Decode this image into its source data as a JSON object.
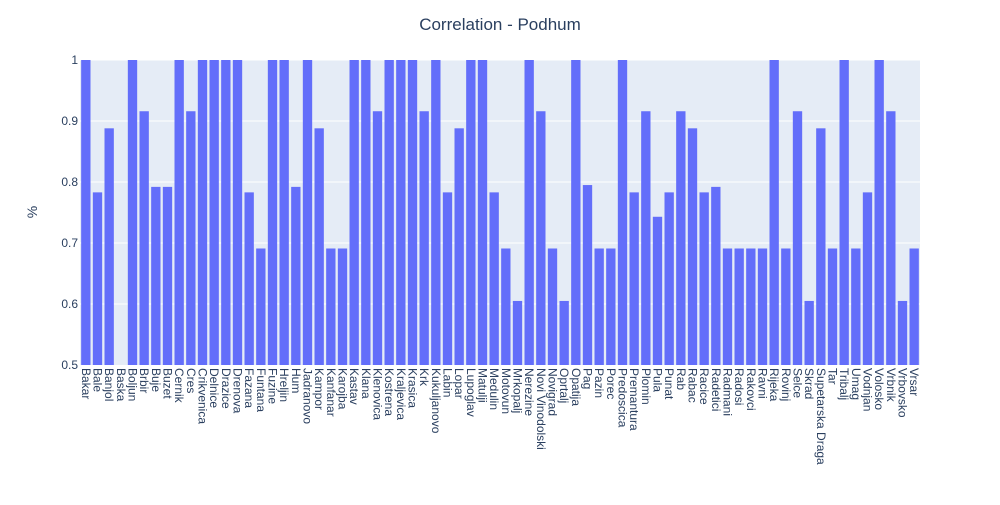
{
  "chart_data": {
    "type": "bar",
    "title": "Correlation - Podhum",
    "xlabel": "",
    "ylabel": "%",
    "ylim": [
      0.5,
      1.0
    ],
    "yticks": [
      "0.5",
      "0.6",
      "0.7",
      "0.8",
      "0.9",
      "1"
    ],
    "grid": true,
    "legend": "none",
    "bar_color": "#636efa",
    "plot_bg": "#e5ecf6",
    "grid_color": "#ffffff",
    "text_color": "#2a3f5f",
    "categories": [
      "Bakar",
      "Bale",
      "Banjol",
      "Baska",
      "Boljun",
      "Brbir",
      "Buje",
      "Buzet",
      "Cernik",
      "Cres",
      "Crikvenica",
      "Delnice",
      "Drazice",
      "Drenova",
      "Fazana",
      "Funtana",
      "Fuzine",
      "Hreljin",
      "Hum",
      "Jadranovo",
      "Kampor",
      "Kanfanar",
      "Karojba",
      "Kastav",
      "Klana",
      "Klenovica",
      "Kostrena",
      "Kraljevica",
      "Krasica",
      "Krk",
      "Kukuljanovo",
      "Labin",
      "Lopar",
      "Lupoglav",
      "Matulji",
      "Medulin",
      "Motovun",
      "Mrkopalj",
      "Nerezine",
      "Novi Vinodolski",
      "Novigrad",
      "Oprtalj",
      "Opatija",
      "Pag",
      "Pazin",
      "Porec",
      "Predoscica",
      "Premantura",
      "Plomin",
      "Pula",
      "Punat",
      "Rab",
      "Rabac",
      "Racice",
      "Radetici",
      "Radmani",
      "Radosi",
      "Rakovci",
      "Ravni",
      "Rijeka",
      "Rovinj",
      "Selce",
      "Skrad",
      "Supetarska Draga",
      "Tar",
      "Tribalj",
      "Umag",
      "Vodnjan",
      "Volosko",
      "Vrbnik",
      "Vrbovsko",
      "Vrsar"
    ],
    "values": [
      1.0,
      0.783,
      0.888,
      0.5,
      1.0,
      0.916,
      0.792,
      0.792,
      1.0,
      0.916,
      1.0,
      1.0,
      1.0,
      1.0,
      0.783,
      0.691,
      1.0,
      1.0,
      0.792,
      1.0,
      0.888,
      0.691,
      0.691,
      1.0,
      1.0,
      0.916,
      1.0,
      1.0,
      1.0,
      0.916,
      1.0,
      0.783,
      0.888,
      1.0,
      1.0,
      0.783,
      0.691,
      0.605,
      1.0,
      0.916,
      0.691,
      0.605,
      1.0,
      0.795,
      0.691,
      0.691,
      1.0,
      0.783,
      0.916,
      0.743,
      0.783,
      0.916,
      0.888,
      0.783,
      0.792,
      0.691,
      0.691,
      0.691,
      0.691,
      1.0,
      0.691,
      0.916,
      0.605,
      0.888,
      0.691,
      1.0,
      0.691,
      0.783,
      1.0,
      0.916,
      0.605,
      0.691
    ]
  }
}
